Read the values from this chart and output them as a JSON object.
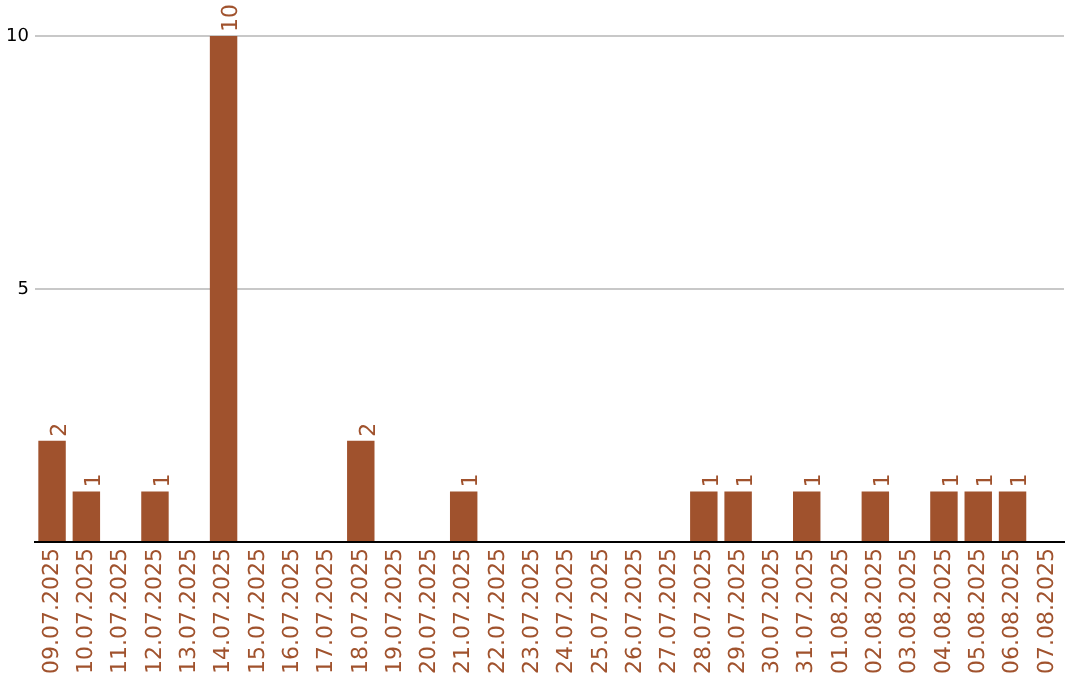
{
  "chart_data": {
    "type": "bar",
    "categories": [
      "09.07.2025",
      "10.07.2025",
      "11.07.2025",
      "12.07.2025",
      "13.07.2025",
      "14.07.2025",
      "15.07.2025",
      "16.07.2025",
      "17.07.2025",
      "18.07.2025",
      "19.07.2025",
      "20.07.2025",
      "21.07.2025",
      "22.07.2025",
      "23.07.2025",
      "24.07.2025",
      "25.07.2025",
      "26.07.2025",
      "27.07.2025",
      "28.07.2025",
      "29.07.2025",
      "30.07.2025",
      "31.07.2025",
      "01.08.2025",
      "02.08.2025",
      "03.08.2025",
      "04.08.2025",
      "05.08.2025",
      "06.08.2025",
      "07.08.2025"
    ],
    "values": [
      2,
      1,
      0,
      1,
      0,
      10,
      0,
      0,
      0,
      2,
      0,
      0,
      1,
      0,
      0,
      0,
      0,
      0,
      0,
      1,
      1,
      0,
      1,
      0,
      1,
      0,
      1,
      1,
      1,
      0
    ],
    "value_labels": [
      "2",
      "1",
      null,
      "1",
      null,
      "10",
      null,
      null,
      null,
      "2",
      null,
      null,
      "1",
      null,
      null,
      null,
      null,
      null,
      null,
      "1",
      "1",
      null,
      "1",
      null,
      "1",
      null,
      "1",
      "1",
      "1",
      null
    ],
    "color": "#a0522d",
    "ylim": [
      0,
      10
    ],
    "yticks": [
      {
        "value": 0,
        "label": null
      },
      5,
      10
    ],
    "grid": "y",
    "legend": false
  }
}
